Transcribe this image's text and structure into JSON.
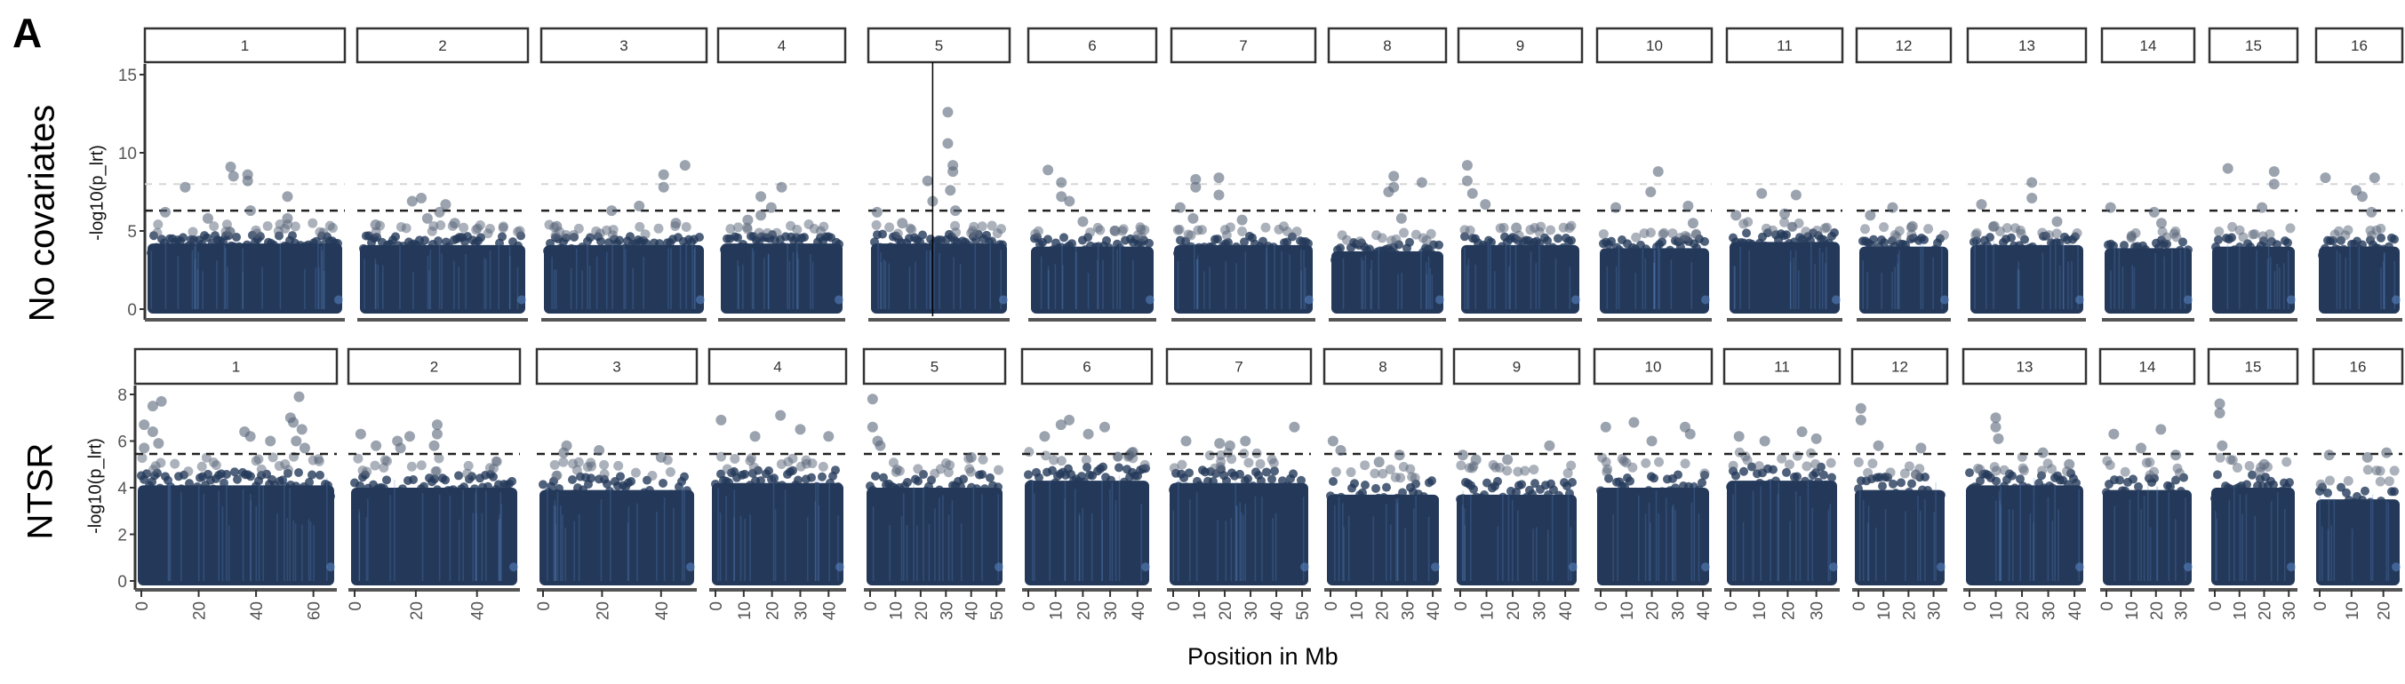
{
  "figure_label": "A",
  "chart_data": {
    "type": "scatter",
    "subtype": "manhattan",
    "xlabel": "Position in Mb",
    "chromosomes": [
      {
        "label": "1",
        "length": 66,
        "ticks": [
          0,
          20,
          40,
          60
        ]
      },
      {
        "label": "2",
        "length": 52,
        "ticks": [
          0,
          20,
          40
        ]
      },
      {
        "label": "3",
        "length": 50,
        "ticks": [
          0,
          20,
          40
        ]
      },
      {
        "label": "4",
        "length": 44,
        "ticks": [
          0,
          10,
          20,
          30,
          40
        ]
      },
      {
        "label": "5",
        "length": 51,
        "ticks": [
          0,
          10,
          20,
          30,
          40,
          50
        ]
      },
      {
        "label": "6",
        "length": 43,
        "ticks": [
          0,
          10,
          20,
          30,
          40
        ]
      },
      {
        "label": "7",
        "length": 51,
        "ticks": [
          0,
          10,
          20,
          30,
          40,
          50
        ]
      },
      {
        "label": "8",
        "length": 41,
        "ticks": [
          0,
          10,
          20,
          30,
          40
        ]
      },
      {
        "label": "9",
        "length": 43,
        "ticks": [
          0,
          10,
          20,
          30,
          40
        ]
      },
      {
        "label": "10",
        "length": 41,
        "ticks": [
          0,
          10,
          20,
          30,
          40
        ]
      },
      {
        "label": "11",
        "length": 36,
        "ticks": [
          0,
          10,
          20,
          30
        ]
      },
      {
        "label": "12",
        "length": 33,
        "ticks": [
          0,
          10,
          20,
          30
        ]
      },
      {
        "label": "13",
        "length": 42,
        "ticks": [
          0,
          10,
          20,
          30,
          40
        ]
      },
      {
        "label": "14",
        "length": 33,
        "ticks": [
          0,
          10,
          20,
          30
        ]
      },
      {
        "label": "15",
        "length": 31,
        "ticks": [
          0,
          10,
          20,
          30
        ]
      },
      {
        "label": "16",
        "length": 24,
        "ticks": [
          0,
          10,
          20
        ]
      }
    ],
    "rows": [
      {
        "label": "No covariates",
        "ylabel": "-log10(p_lrt)",
        "ylim": [
          0,
          15.5
        ],
        "yticks": [
          0,
          5,
          10,
          15
        ],
        "threshold_dashed": 6.3,
        "threshold_light": 8.0,
        "vertical_marker": {
          "chromosome": "5",
          "position": 23
        },
        "bulk_max": [
          4.8,
          4.7,
          4.7,
          4.8,
          4.8,
          4.6,
          4.7,
          4.3,
          4.7,
          4.5,
          4.9,
          4.6,
          4.7,
          4.5,
          4.6,
          4.6
        ],
        "peaks": [
          [
            [
              5,
              6.2
            ],
            [
              12,
              7.8
            ],
            [
              28,
              9.1
            ],
            [
              29,
              8.5
            ],
            [
              34,
              8.6
            ],
            [
              34,
              8.2
            ],
            [
              35,
              6.3
            ],
            [
              48,
              7.2
            ],
            [
              48,
              5.8
            ],
            [
              20,
              5.8
            ]
          ],
          [
            [
              4,
              5.4
            ],
            [
              16,
              6.9
            ],
            [
              19,
              7.1
            ],
            [
              21,
              5.8
            ],
            [
              25,
              6.2
            ],
            [
              27,
              6.7
            ],
            [
              30,
              5.5
            ]
          ],
          [
            [
              3,
              5.3
            ],
            [
              21,
              6.3
            ],
            [
              30,
              6.6
            ],
            [
              38,
              8.6
            ],
            [
              38,
              7.8
            ],
            [
              45,
              9.2
            ],
            [
              42,
              5.5
            ]
          ],
          [
            [
              9,
              5.7
            ],
            [
              14,
              6.0
            ],
            [
              14,
              7.2
            ],
            [
              18,
              6.5
            ],
            [
              22,
              7.8
            ]
          ],
          [
            [
              1,
              6.2
            ],
            [
              11,
              5.5
            ],
            [
              21,
              8.2
            ],
            [
              23,
              6.9
            ],
            [
              29,
              12.6
            ],
            [
              29,
              10.6
            ],
            [
              31,
              8.8
            ],
            [
              31,
              9.2
            ],
            [
              30,
              7.6
            ],
            [
              32,
              6.3
            ]
          ],
          [
            [
              5,
              8.9
            ],
            [
              10,
              8.1
            ],
            [
              10,
              7.2
            ],
            [
              13,
              6.9
            ],
            [
              18,
              5.6
            ],
            [
              30,
              5.0
            ]
          ],
          [
            [
              1,
              6.5
            ],
            [
              7,
              7.8
            ],
            [
              7,
              8.3
            ],
            [
              16,
              8.4
            ],
            [
              16,
              7.3
            ],
            [
              6,
              5.8
            ],
            [
              25,
              5.7
            ]
          ],
          [
            [
              21,
              7.5
            ],
            [
              23,
              8.5
            ],
            [
              23,
              7.8
            ],
            [
              34,
              8.1
            ],
            [
              26,
              5.8
            ]
          ],
          [
            [
              1,
              9.2
            ],
            [
              1,
              8.2
            ],
            [
              3,
              7.4
            ],
            [
              8,
              6.7
            ],
            [
              20,
              5.2
            ]
          ],
          [
            [
              5,
              6.5
            ],
            [
              19,
              7.5
            ],
            [
              22,
              8.8
            ],
            [
              34,
              6.6
            ],
            [
              36,
              5.5
            ]
          ],
          [
            [
              1,
              6.0
            ],
            [
              10,
              7.4
            ],
            [
              18,
              6.1
            ],
            [
              22,
              7.3
            ]
          ],
          [
            [
              3,
              6.0
            ],
            [
              12,
              6.5
            ],
            [
              20,
              5.3
            ]
          ],
          [
            [
              3,
              6.7
            ],
            [
              8,
              5.3
            ],
            [
              23,
              8.1
            ],
            [
              23,
              7.1
            ],
            [
              33,
              5.6
            ]
          ],
          [
            [
              1,
              6.5
            ],
            [
              19,
              6.2
            ],
            [
              22,
              5.5
            ]
          ],
          [
            [
              5,
              9.0
            ],
            [
              19,
              6.5
            ],
            [
              24,
              8.8
            ],
            [
              24,
              8.0
            ]
          ],
          [
            [
              1,
              8.4
            ],
            [
              11,
              7.6
            ],
            [
              13,
              7.2
            ],
            [
              16,
              6.2
            ],
            [
              17,
              8.4
            ]
          ]
        ]
      },
      {
        "label": "NTSR",
        "ylabel": "-log10(p_lrt)",
        "ylim": [
          0,
          8.4
        ],
        "yticks": [
          0,
          2,
          4,
          6,
          8
        ],
        "threshold_dashed": 5.45,
        "bulk_max": [
          4.7,
          4.6,
          4.5,
          4.8,
          4.6,
          4.9,
          4.8,
          4.3,
          4.3,
          4.6,
          4.9,
          4.5,
          4.7,
          4.5,
          4.6,
          4.1
        ],
        "peaks": [
          [
            [
              1,
              5.7
            ],
            [
              1,
              6.7
            ],
            [
              4,
              7.5
            ],
            [
              7,
              7.7
            ],
            [
              4,
              6.4
            ],
            [
              6,
              5.9
            ],
            [
              36,
              6.4
            ],
            [
              38,
              6.2
            ],
            [
              45,
              6.0
            ],
            [
              52,
              7.0
            ],
            [
              53,
              6.8
            ],
            [
              55,
              7.9
            ],
            [
              56,
              6.5
            ],
            [
              54,
              6.0
            ],
            [
              57,
              5.7
            ]
          ],
          [
            [
              2,
              6.3
            ],
            [
              7,
              5.8
            ],
            [
              14,
              6.0
            ],
            [
              18,
              6.2
            ],
            [
              15,
              5.7
            ],
            [
              27,
              6.7
            ],
            [
              27,
              6.3
            ],
            [
              26,
              5.8
            ]
          ],
          [
            [
              7,
              5.5
            ],
            [
              8,
              5.8
            ],
            [
              19,
              5.6
            ],
            [
              40,
              5.3
            ]
          ],
          [
            [
              2,
              6.9
            ],
            [
              14,
              6.2
            ],
            [
              23,
              7.1
            ],
            [
              30,
              6.5
            ],
            [
              40,
              6.2
            ]
          ],
          [
            [
              1,
              7.8
            ],
            [
              1,
              6.6
            ],
            [
              3,
              6.0
            ],
            [
              4,
              5.8
            ],
            [
              40,
              5.3
            ]
          ],
          [
            [
              6,
              6.2
            ],
            [
              12,
              6.7
            ],
            [
              15,
              6.9
            ],
            [
              22,
              6.3
            ],
            [
              28,
              6.6
            ],
            [
              38,
              5.5
            ]
          ],
          [
            [
              5,
              6.0
            ],
            [
              18,
              5.9
            ],
            [
              22,
              5.8
            ],
            [
              28,
              6.0
            ],
            [
              47,
              6.6
            ]
          ],
          [
            [
              1,
              6.0
            ],
            [
              4,
              5.6
            ],
            [
              19,
              5.1
            ],
            [
              27,
              5.4
            ]
          ],
          [
            [
              1,
              5.4
            ],
            [
              6,
              5.2
            ],
            [
              18,
              5.2
            ],
            [
              34,
              5.8
            ]
          ],
          [
            [
              2,
              6.6
            ],
            [
              13,
              6.8
            ],
            [
              20,
              6.0
            ],
            [
              33,
              6.6
            ],
            [
              35,
              6.3
            ]
          ],
          [
            [
              3,
              6.2
            ],
            [
              12,
              6.0
            ],
            [
              25,
              6.4
            ],
            [
              30,
              6.1
            ]
          ],
          [
            [
              1,
              7.4
            ],
            [
              1,
              6.9
            ],
            [
              8,
              5.8
            ],
            [
              25,
              5.7
            ]
          ],
          [
            [
              10,
              7.0
            ],
            [
              10,
              6.6
            ],
            [
              11,
              6.1
            ],
            [
              28,
              5.5
            ],
            [
              38,
              5.0
            ]
          ],
          [
            [
              3,
              6.3
            ],
            [
              14,
              5.7
            ],
            [
              22,
              6.5
            ],
            [
              28,
              5.4
            ]
          ],
          [
            [
              2,
              7.6
            ],
            [
              2,
              7.2
            ],
            [
              3,
              5.8
            ],
            [
              20,
              5.0
            ]
          ],
          [
            [
              3,
              5.4
            ],
            [
              15,
              5.3
            ],
            [
              21,
              5.5
            ]
          ]
        ]
      }
    ]
  },
  "colors": {
    "bulk": "#24395a",
    "bulk_light": "#5d8ed0",
    "peak": "#59667a",
    "axis": "#333333",
    "threshold": "#222222",
    "threshold_light": "#d6d6d6"
  }
}
